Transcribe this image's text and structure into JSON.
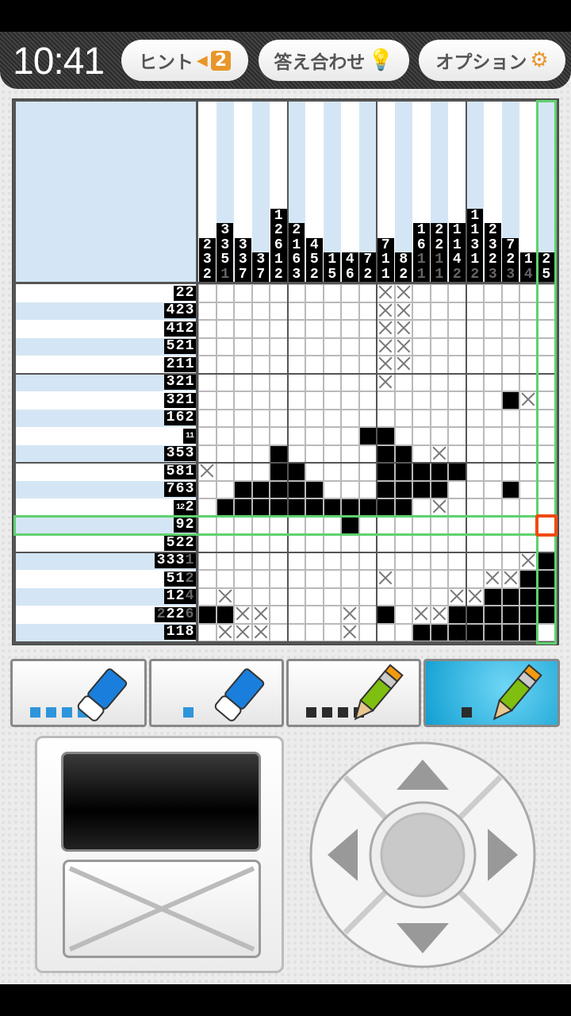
{
  "status": {
    "time": "10:41"
  },
  "header": {
    "hint": {
      "label": "ヒント",
      "count": "2",
      "icon": "hint-arrow-badge"
    },
    "check": {
      "label": "答え合わせ",
      "icon": "lightbulb-icon"
    },
    "options": {
      "label": "オプション",
      "icon": "gear-icon"
    }
  },
  "colors": {
    "accent": "#e8962a",
    "selection": "#5fd16f",
    "cursor": "#f04a10",
    "active_tool": "#119fd2",
    "clue_bg_alt": "#d4e6f5"
  },
  "puzzle": {
    "size": [
      20,
      20
    ],
    "selected_row": 14,
    "selected_col": 20,
    "column_clues": [
      [
        {
          "n": "2"
        },
        {
          "n": "3"
        },
        {
          "n": "2"
        }
      ],
      [
        {
          "n": "3"
        },
        {
          "n": "3"
        },
        {
          "n": "5"
        },
        {
          "n": "1",
          "done": true
        }
      ],
      [
        {
          "n": "3"
        },
        {
          "n": "3"
        },
        {
          "n": "7"
        }
      ],
      [
        {
          "n": "3"
        },
        {
          "n": "7"
        }
      ],
      [
        {
          "n": "1"
        },
        {
          "n": "2"
        },
        {
          "n": "6"
        },
        {
          "n": "1"
        },
        {
          "n": "2"
        }
      ],
      [
        {
          "n": "2"
        },
        {
          "n": "1"
        },
        {
          "n": "6"
        },
        {
          "n": "3"
        }
      ],
      [
        {
          "n": "4"
        },
        {
          "n": "5"
        },
        {
          "n": "2"
        }
      ],
      [
        {
          "n": "1"
        },
        {
          "n": "5"
        }
      ],
      [
        {
          "n": "4"
        },
        {
          "n": "6"
        }
      ],
      [
        {
          "n": "7"
        },
        {
          "n": "2"
        }
      ],
      [
        {
          "n": "7"
        },
        {
          "n": "1"
        },
        {
          "n": "1"
        }
      ],
      [
        {
          "n": "8"
        },
        {
          "n": "2"
        }
      ],
      [
        {
          "n": "1"
        },
        {
          "n": "6"
        },
        {
          "n": "1",
          "done": true
        },
        {
          "n": "1",
          "done": true
        }
      ],
      [
        {
          "n": "2"
        },
        {
          "n": "2"
        },
        {
          "n": "1",
          "done": true
        },
        {
          "n": "1",
          "done": true
        }
      ],
      [
        {
          "n": "1"
        },
        {
          "n": "1"
        },
        {
          "n": "4"
        },
        {
          "n": "2",
          "done": true
        }
      ],
      [
        {
          "n": "1"
        },
        {
          "n": "1"
        },
        {
          "n": "3"
        },
        {
          "n": "1"
        },
        {
          "n": "2",
          "done": true
        }
      ],
      [
        {
          "n": "2"
        },
        {
          "n": "3"
        },
        {
          "n": "2"
        },
        {
          "n": "3",
          "done": true
        }
      ],
      [
        {
          "n": "7"
        },
        {
          "n": "2"
        },
        {
          "n": "3",
          "done": true
        }
      ],
      [
        {
          "n": "1"
        },
        {
          "n": "4",
          "done": true
        }
      ],
      [
        {
          "n": "2"
        },
        {
          "n": "5"
        }
      ]
    ],
    "row_clues": [
      [
        {
          "n": "2"
        },
        {
          "n": "2"
        }
      ],
      [
        {
          "n": "4"
        },
        {
          "n": "2"
        },
        {
          "n": "3"
        }
      ],
      [
        {
          "n": "4"
        },
        {
          "n": "1"
        },
        {
          "n": "2"
        }
      ],
      [
        {
          "n": "5"
        },
        {
          "n": "2"
        },
        {
          "n": "1"
        }
      ],
      [
        {
          "n": "2"
        },
        {
          "n": "1"
        },
        {
          "n": "1"
        }
      ],
      [
        {
          "n": "3"
        },
        {
          "n": "2"
        },
        {
          "n": "1"
        }
      ],
      [
        {
          "n": "3"
        },
        {
          "n": "2"
        },
        {
          "n": "1"
        }
      ],
      [
        {
          "n": "1"
        },
        {
          "n": "6"
        },
        {
          "n": "2"
        }
      ],
      [
        {
          "n": "11"
        }
      ],
      [
        {
          "n": "3"
        },
        {
          "n": "5"
        },
        {
          "n": "3"
        }
      ],
      [
        {
          "n": "5"
        },
        {
          "n": "8"
        },
        {
          "n": "1"
        }
      ],
      [
        {
          "n": "7"
        },
        {
          "n": "6"
        },
        {
          "n": "3"
        }
      ],
      [
        {
          "n": "12"
        },
        {
          "n": "2"
        }
      ],
      [
        {
          "n": "9"
        },
        {
          "n": "2"
        }
      ],
      [
        {
          "n": "5"
        },
        {
          "n": "2"
        },
        {
          "n": "2"
        }
      ],
      [
        {
          "n": "3"
        },
        {
          "n": "3"
        },
        {
          "n": "3"
        },
        {
          "n": "1",
          "done": true
        }
      ],
      [
        {
          "n": "5"
        },
        {
          "n": "1"
        },
        {
          "n": "2",
          "done": true
        }
      ],
      [
        {
          "n": "1"
        },
        {
          "n": "2"
        },
        {
          "n": "4",
          "done": true
        }
      ],
      [
        {
          "n": "2",
          "done": true
        },
        {
          "n": "2"
        },
        {
          "n": "2"
        },
        {
          "n": "6",
          "done": true
        }
      ],
      [
        {
          "n": "1"
        },
        {
          "n": "1"
        },
        {
          "n": "8"
        }
      ]
    ],
    "grid": [
      "..........xx........",
      "..........xx........",
      "..........xx........",
      "..........xx........",
      "..........xx........",
      "..........x.........",
      ".................#x.",
      "....................",
      ".........##.........",
      "....#.....##.x......",
      "x...##....#####.....",
      "..#####...####...#..",
      ".###########.x......",
      "........#...........",
      "....................",
      "..................x#",
      "..........x.....xx##",
      ".x............xx####",
      "##xx....x.#.xx######",
      ".xxx....x...#######."
    ]
  },
  "tools": [
    {
      "name": "eraser-large",
      "icon": "eraser-icon",
      "size": 4,
      "active": false
    },
    {
      "name": "eraser-small",
      "icon": "eraser-icon",
      "size": 1,
      "active": false
    },
    {
      "name": "pencil-large",
      "icon": "pencil-icon",
      "size": 4,
      "active": false
    },
    {
      "name": "pencil-small",
      "icon": "pencil-icon",
      "size": 1,
      "active": true
    }
  ],
  "controls": {
    "fill": "fill-button",
    "cross": "cross-button",
    "dpad": [
      "up",
      "down",
      "left",
      "right",
      "center"
    ]
  }
}
